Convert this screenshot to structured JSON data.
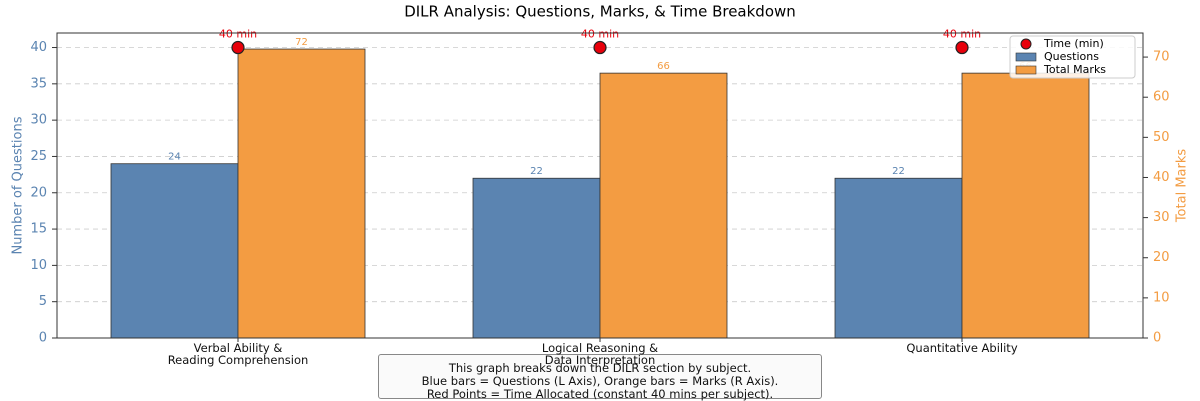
{
  "chart_data": {
    "type": "bar",
    "title": "DILR Analysis: Questions, Marks, & Time Breakdown",
    "categories": [
      "Verbal Ability &\nReading Comprehension",
      "Logical Reasoning &\nData Interpretation",
      "Quantitative Ability"
    ],
    "series": [
      {
        "name": "Questions",
        "color": "#5b84b1",
        "values": [
          24,
          22,
          22
        ]
      },
      {
        "name": "Total Marks",
        "color": "#f39c42",
        "axis": "y2",
        "values": [
          72,
          66,
          66
        ]
      },
      {
        "name": "Time (min)",
        "color": "#e8000b",
        "type": "scatter",
        "values": [
          40,
          40,
          40
        ],
        "value_labels": [
          "40 min",
          "40 min",
          "40 min"
        ]
      }
    ],
    "ylabel": "Number of Questions",
    "y2label": "Total Marks",
    "ylim": [
      0,
      42
    ],
    "yticks": [
      0,
      5,
      10,
      15,
      20,
      25,
      30,
      35,
      40
    ],
    "y2lim": [
      0,
      76
    ],
    "y2ticks": [
      0,
      10,
      20,
      30,
      40,
      50,
      60,
      70
    ],
    "grid": true,
    "legend": "upper right",
    "annotation": "This graph breaks down the DILR section by subject.\nBlue bars = Questions (L Axis), Orange bars = Marks (R Axis).\nRed Points = Time Allocated (constant 40 mins per subject)."
  }
}
